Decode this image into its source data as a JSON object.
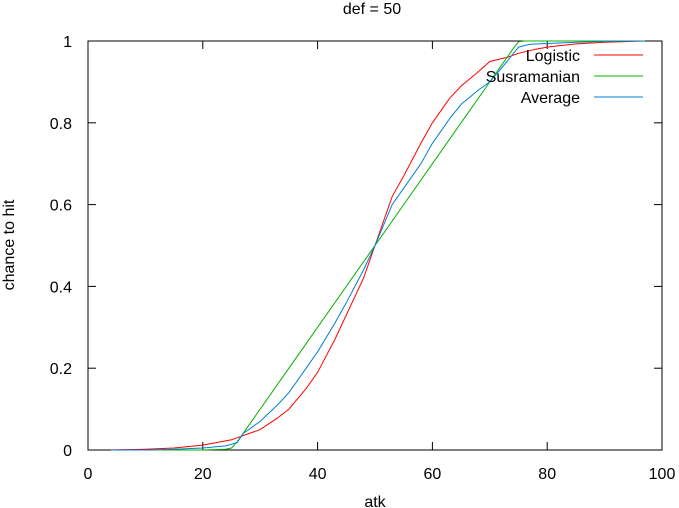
{
  "chart_data": {
    "type": "line",
    "title": "def = 50",
    "xlabel": "atk",
    "ylabel": "chance to hit",
    "xlim": [
      0,
      100
    ],
    "ylim": [
      0,
      1
    ],
    "xticks": [
      0,
      20,
      40,
      60,
      80,
      100
    ],
    "yticks": [
      0,
      0.2,
      0.4,
      0.6,
      0.8,
      1
    ],
    "ytick_labels": [
      "0",
      "0.2",
      "0.4",
      "0.6",
      "0.8",
      "1"
    ],
    "grid": false,
    "legend_position": "top-right",
    "series": [
      {
        "name": "Logistic",
        "color": "#ff0000",
        "points": [
          [
            4,
            0.0003
          ],
          [
            10,
            0.002
          ],
          [
            15,
            0.005
          ],
          [
            20,
            0.012
          ],
          [
            25,
            0.025
          ],
          [
            28,
            0.04
          ],
          [
            30,
            0.05
          ],
          [
            33,
            0.078
          ],
          [
            35,
            0.1
          ],
          [
            38,
            0.15
          ],
          [
            40,
            0.19
          ],
          [
            43,
            0.27
          ],
          [
            45,
            0.33
          ],
          [
            48,
            0.42
          ],
          [
            50,
            0.5
          ],
          [
            53,
            0.62
          ],
          [
            55,
            0.67
          ],
          [
            58,
            0.75
          ],
          [
            60,
            0.8
          ],
          [
            63,
            0.86
          ],
          [
            65,
            0.89
          ],
          [
            68,
            0.925
          ],
          [
            70,
            0.95
          ],
          [
            73,
            0.96
          ],
          [
            75,
            0.97
          ],
          [
            78,
            0.98
          ],
          [
            80,
            0.985
          ],
          [
            85,
            0.993
          ],
          [
            90,
            0.997
          ],
          [
            97,
            1.0
          ]
        ]
      },
      {
        "name": "Susramanian",
        "color": "#00b000",
        "points": [
          [
            4,
            0
          ],
          [
            10,
            0
          ],
          [
            15,
            0
          ],
          [
            20,
            0
          ],
          [
            24,
            0.002
          ],
          [
            25,
            0.005
          ],
          [
            26,
            0.02
          ],
          [
            27,
            0.04
          ],
          [
            30,
            0.1
          ],
          [
            35,
            0.2
          ],
          [
            40,
            0.3
          ],
          [
            45,
            0.4
          ],
          [
            50,
            0.5
          ],
          [
            55,
            0.6
          ],
          [
            60,
            0.7
          ],
          [
            65,
            0.8
          ],
          [
            70,
            0.9
          ],
          [
            74,
            0.98
          ],
          [
            75,
            0.998
          ],
          [
            76,
            1.0
          ],
          [
            80,
            1.0
          ],
          [
            90,
            1.0
          ],
          [
            97,
            1.0
          ]
        ]
      },
      {
        "name": "Average",
        "color": "#0080d0",
        "points": [
          [
            4,
            0
          ],
          [
            10,
            0
          ],
          [
            15,
            0.002
          ],
          [
            20,
            0.005
          ],
          [
            24,
            0.01
          ],
          [
            26,
            0.018
          ],
          [
            27,
            0.04
          ],
          [
            30,
            0.07
          ],
          [
            33,
            0.11
          ],
          [
            35,
            0.14
          ],
          [
            38,
            0.2
          ],
          [
            40,
            0.24
          ],
          [
            43,
            0.31
          ],
          [
            45,
            0.36
          ],
          [
            48,
            0.44
          ],
          [
            50,
            0.5
          ],
          [
            53,
            0.6
          ],
          [
            55,
            0.64
          ],
          [
            58,
            0.7
          ],
          [
            60,
            0.75
          ],
          [
            63,
            0.81
          ],
          [
            65,
            0.845
          ],
          [
            68,
            0.88
          ],
          [
            70,
            0.9
          ],
          [
            73,
            0.95
          ],
          [
            75,
            0.985
          ],
          [
            77,
            0.992
          ],
          [
            80,
            0.994
          ],
          [
            85,
            0.997
          ],
          [
            90,
            0.999
          ],
          [
            97,
            1.0
          ]
        ]
      }
    ]
  }
}
